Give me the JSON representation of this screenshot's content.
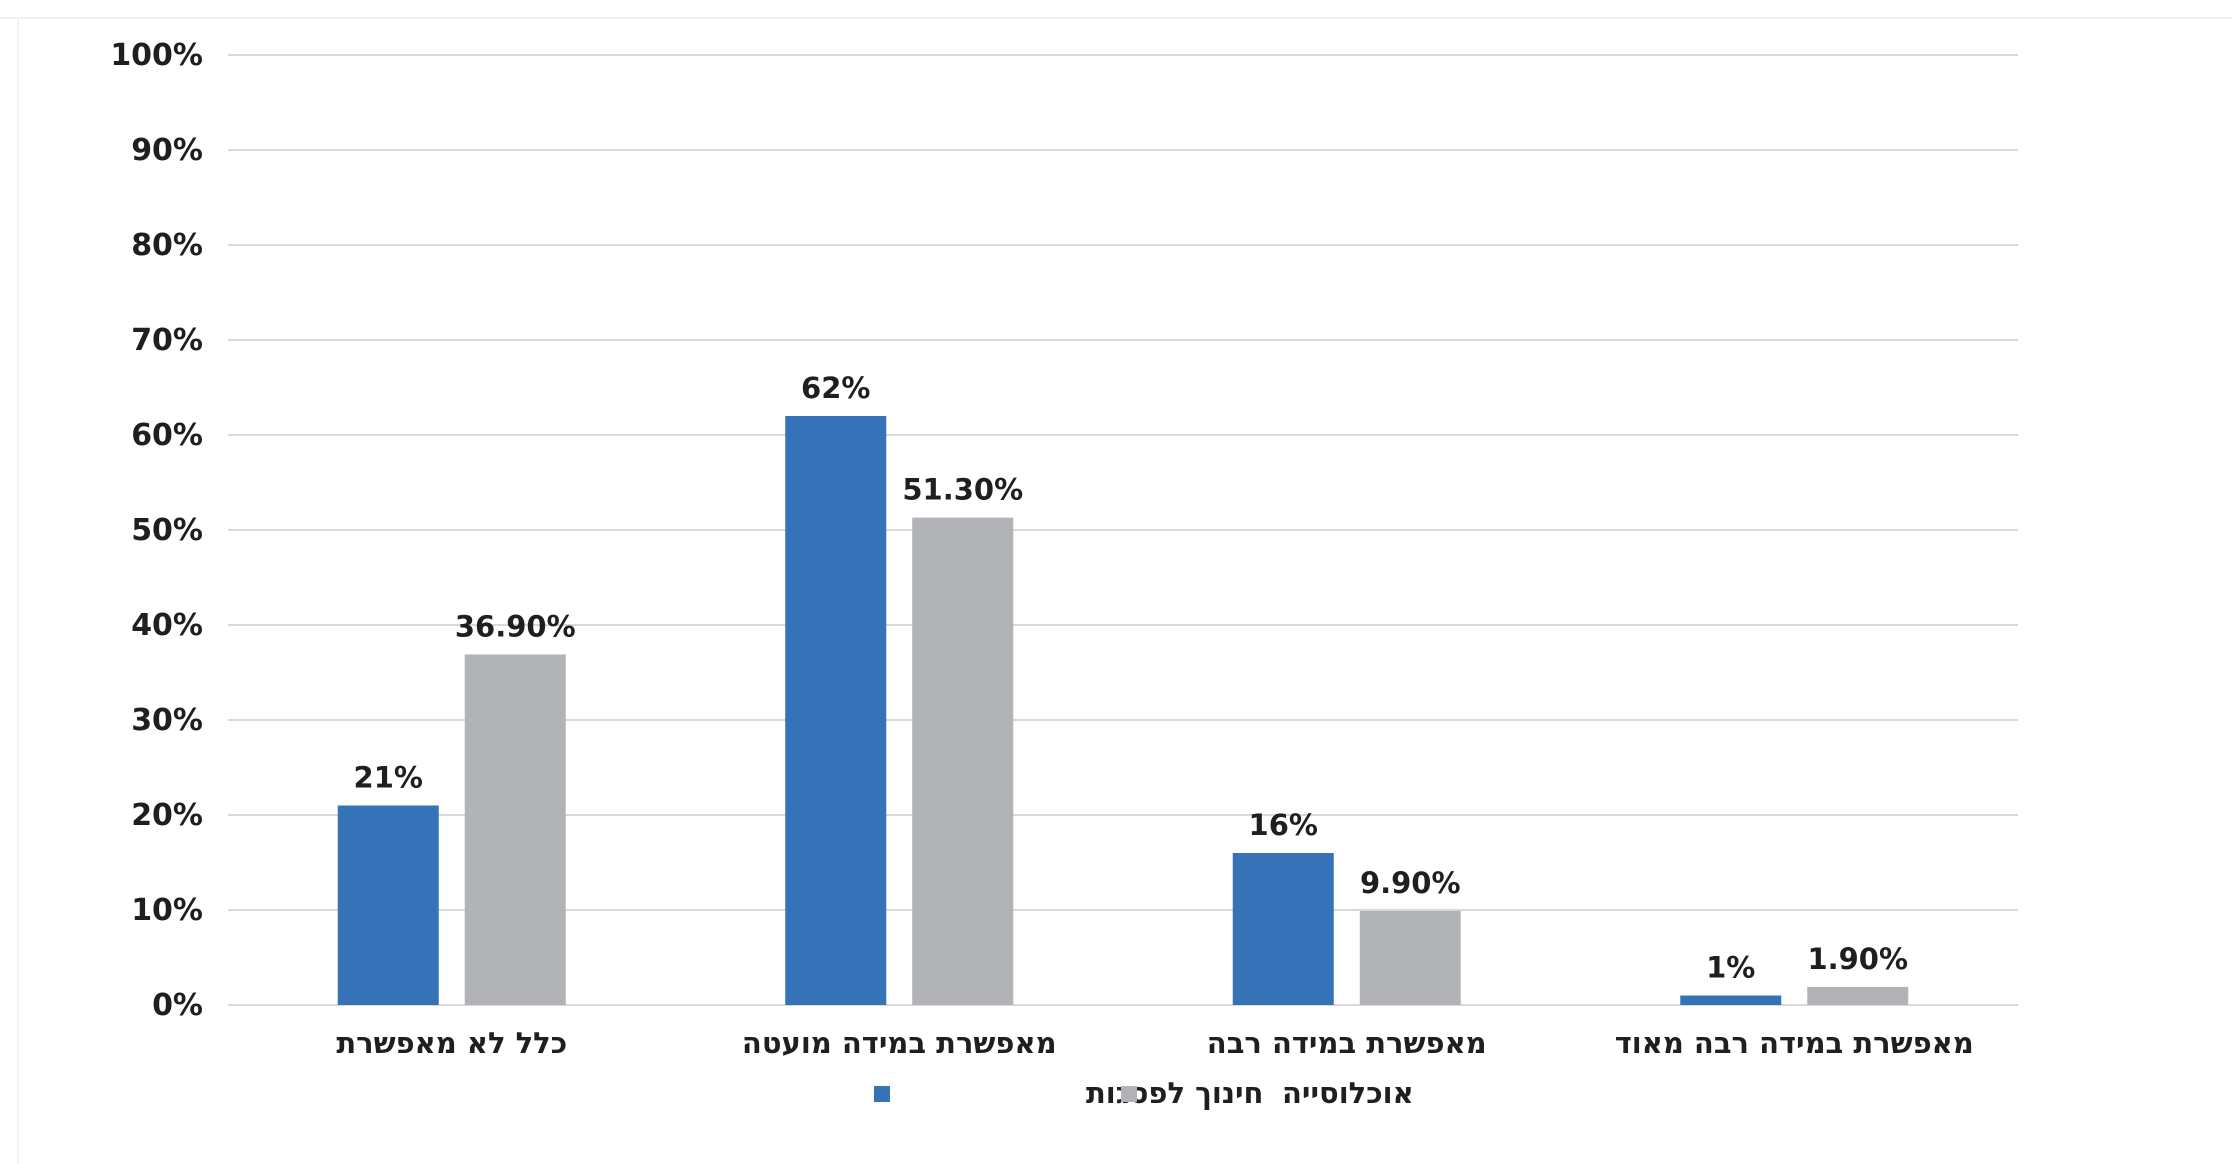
{
  "chart_data": {
    "type": "bar",
    "categories": [
      "כלל לא מאפשרת",
      "מאפשרת במידה מועטה",
      "מאפשרת במידה רבה",
      "מאפשרת במידה רבה מאוד"
    ],
    "series": [
      {
        "name": "חינוך לפסגות",
        "color": "#3572b8",
        "values": [
          21,
          62,
          16,
          1
        ],
        "labels": [
          "21%",
          "62%",
          "16%",
          "1%"
        ]
      },
      {
        "name": "אוכלוסייה",
        "color": "#b2b3b6",
        "values": [
          36.9,
          51.3,
          9.9,
          1.9
        ],
        "labels": [
          "36.90%",
          "51.30%",
          "9.90%",
          "1.90%"
        ]
      }
    ],
    "ylim": [
      0,
      100
    ],
    "yticks": [
      "0%",
      "10%",
      "20%",
      "30%",
      "40%",
      "50%",
      "60%",
      "70%",
      "80%",
      "90%",
      "100%"
    ],
    "grid": true,
    "legend_position": "bottom"
  }
}
